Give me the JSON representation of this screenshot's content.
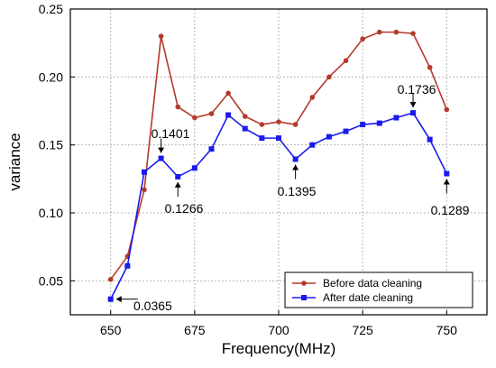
{
  "chart_data": {
    "type": "line",
    "xlabel": "Frequency(MHz)",
    "ylabel": "variance",
    "xlim": [
      638,
      762
    ],
    "ylim": [
      0.025,
      0.25
    ],
    "xticks": [
      650,
      675,
      700,
      725,
      750
    ],
    "yticks": [
      0.05,
      0.1,
      0.15,
      0.2,
      0.25
    ],
    "xtick_labels": [
      "650",
      "675",
      "700",
      "725",
      "750"
    ],
    "ytick_labels": [
      "0.05",
      "0.10",
      "0.15",
      "0.20",
      "0.25"
    ],
    "grid": true,
    "legend_position": "bottom-right",
    "x": [
      650,
      655,
      660,
      665,
      670,
      675,
      680,
      685,
      690,
      695,
      700,
      705,
      710,
      715,
      720,
      725,
      730,
      735,
      740,
      745,
      750
    ],
    "series": [
      {
        "name": "Before data cleaning",
        "color": "#b5392a",
        "marker": "circle",
        "values": [
          0.051,
          0.068,
          0.117,
          0.23,
          0.178,
          0.17,
          0.173,
          0.188,
          0.171,
          0.165,
          0.167,
          0.165,
          0.185,
          0.2,
          0.212,
          0.228,
          0.233,
          0.233,
          0.232,
          0.207,
          0.176
        ]
      },
      {
        "name": "After date cleaning",
        "color": "#1a1aee",
        "marker": "square",
        "values": [
          0.0365,
          0.061,
          0.13,
          0.1401,
          0.1266,
          0.133,
          0.147,
          0.172,
          0.162,
          0.155,
          0.155,
          0.1395,
          0.15,
          0.156,
          0.16,
          0.165,
          0.166,
          0.17,
          0.1736,
          0.154,
          0.1289
        ]
      }
    ],
    "annotations": [
      {
        "text": "0.0365",
        "x": 650,
        "y": 0.0365
      },
      {
        "text": "0.1401",
        "x": 665,
        "y": 0.1401
      },
      {
        "text": "0.1266",
        "x": 670,
        "y": 0.1266
      },
      {
        "text": "0.1395",
        "x": 705,
        "y": 0.1395
      },
      {
        "text": "0.1736",
        "x": 740,
        "y": 0.1736
      },
      {
        "text": "0.1289",
        "x": 750,
        "y": 0.1289
      }
    ]
  }
}
